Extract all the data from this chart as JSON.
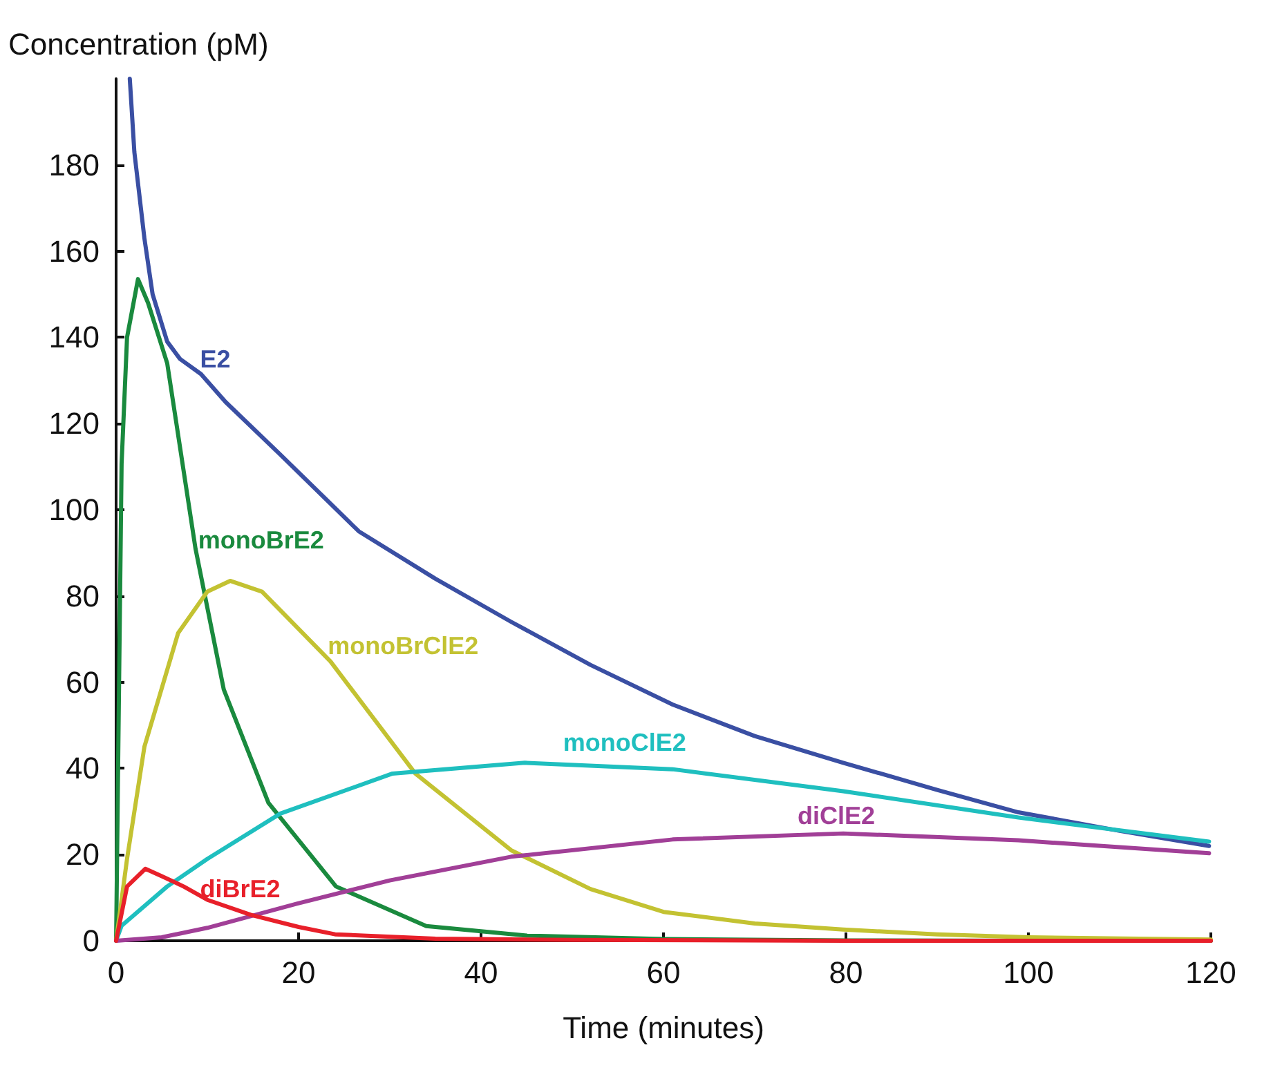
{
  "chart_data": {
    "type": "line",
    "xlabel": "Time (minutes)",
    "ylabel": "Concentration (pM)",
    "xlim": [
      0,
      120
    ],
    "xticks": [
      0,
      20,
      40,
      60,
      80,
      100,
      120
    ],
    "ylim": [
      0,
      200
    ],
    "yticks": [
      0,
      20,
      40,
      60,
      80,
      100,
      120,
      140,
      160,
      180
    ],
    "grid": false,
    "legend": false,
    "marker": "none",
    "line_style": "solid",
    "series": [
      {
        "name": "E2",
        "color": "#3a4fa3",
        "x": [
          1.5,
          2,
          3.1,
          4,
          5.6,
          7,
          9.3,
          12,
          17.9,
          26.6,
          35,
          43.3,
          52,
          61,
          70,
          79.7,
          90,
          98.9,
          110,
          119.8
        ],
        "values": [
          200,
          183,
          163,
          150,
          139,
          135,
          131.5,
          125,
          113,
          95,
          84,
          74,
          64,
          54.8,
          47.5,
          41.3,
          35,
          29.8,
          25.5,
          22
        ]
      },
      {
        "name": "monoBrE2",
        "color": "#1a8a3e",
        "x": [
          0,
          0.6,
          1.2,
          2.4,
          3.5,
          5.6,
          8.7,
          11.8,
          16.7,
          24.1,
          34,
          45,
          60,
          80,
          100,
          120
        ],
        "values": [
          0,
          110.6,
          140,
          153.5,
          148,
          134,
          91,
          58.3,
          32,
          12.6,
          3.4,
          1.2,
          0.4,
          0.1,
          0,
          0
        ]
      },
      {
        "name": "monoBrClE2",
        "color": "#c3c232",
        "x": [
          0,
          1.2,
          3.1,
          6.8,
          10,
          12.5,
          16,
          23.5,
          32.8,
          43.3,
          52,
          60,
          70,
          79.7,
          90,
          100,
          120
        ],
        "values": [
          0,
          19,
          45,
          71.4,
          81,
          83.5,
          81,
          64.8,
          38.8,
          21,
          12,
          6.7,
          4,
          2.6,
          1.5,
          0.8,
          0.3
        ]
      },
      {
        "name": "monoClE2",
        "color": "#1fbfbf",
        "x": [
          0,
          0.6,
          5.6,
          10,
          18,
          30.3,
          44.8,
          61,
          79.7,
          98.9,
          119.8
        ],
        "values": [
          0,
          3.5,
          12.6,
          19,
          29.5,
          38.8,
          41.3,
          39.8,
          34.7,
          28.6,
          23
        ]
      },
      {
        "name": "diClE2",
        "color": "#a13f97",
        "x": [
          0,
          5,
          10,
          19.8,
          30,
          43.3,
          61,
          79.7,
          98.9,
          119.8
        ],
        "values": [
          0,
          0.8,
          3,
          8.6,
          14,
          19.5,
          23.5,
          24.9,
          23.3,
          20.3
        ]
      },
      {
        "name": "diBrE2",
        "color": "#e8202a",
        "x": [
          0,
          1.2,
          3.2,
          5,
          7.4,
          10,
          14.8,
          20,
          24,
          35,
          50,
          80,
          120
        ],
        "values": [
          0,
          12.6,
          16.7,
          15,
          12.6,
          9.5,
          6,
          3.2,
          1.5,
          0.5,
          0.2,
          0,
          0
        ]
      }
    ]
  }
}
